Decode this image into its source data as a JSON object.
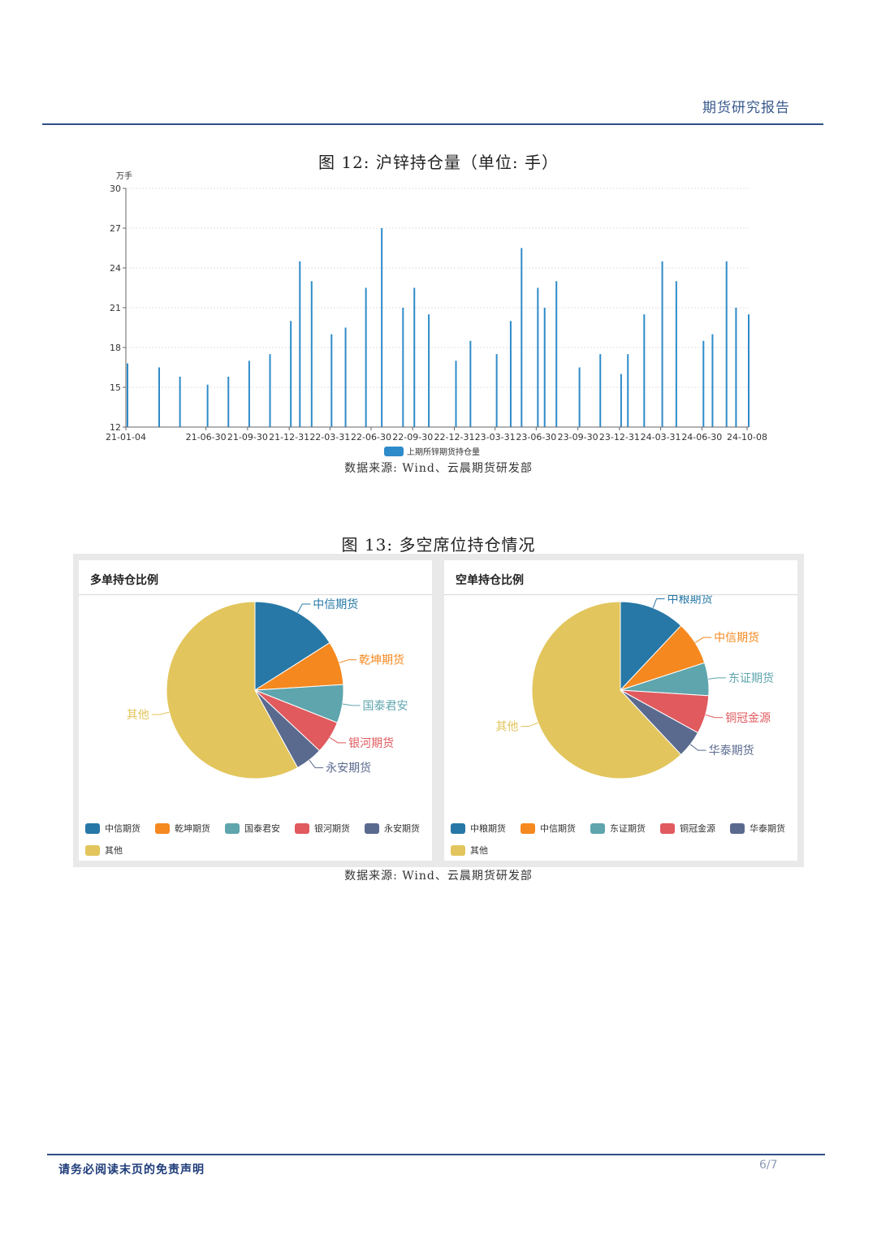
{
  "header": {
    "title": "期货研究报告"
  },
  "figure12": {
    "title": "图 12:  沪锌持仓量（单位:  手）",
    "source": "数据来源:  Wind、云晨期货研发部"
  },
  "chart_data": [
    {
      "type": "bar",
      "unit_label": "万手",
      "ylim": [
        12,
        30
      ],
      "yticks": [
        12,
        15,
        18,
        21,
        24,
        27,
        30
      ],
      "xticks": [
        "21-01-04",
        "21-06-30",
        "21-09-30",
        "21-12-31",
        "22-03-31",
        "22-06-30",
        "22-09-30",
        "22-12-31",
        "23-03-31",
        "23-06-30",
        "23-09-30",
        "23-12-31",
        "24-03-31",
        "24-06-30",
        "24-10-08"
      ],
      "legend": "上期所锌期货持仓量",
      "color": "#2e8bc9",
      "grid": true,
      "series": [
        {
          "name": "上期所锌期货持仓量",
          "x": [
            "21-01-04",
            "21-03-15",
            "21-04-30",
            "21-06-30",
            "21-08-15",
            "21-09-30",
            "21-11-15",
            "21-12-31",
            "22-01-20",
            "22-02-15",
            "22-03-31",
            "22-05-01",
            "22-06-15",
            "22-07-20",
            "22-09-05",
            "22-09-30",
            "22-11-01",
            "22-12-31",
            "23-02-01",
            "23-03-31",
            "23-05-01",
            "23-05-25",
            "23-06-30",
            "23-07-15",
            "23-08-10",
            "23-09-30",
            "23-11-15",
            "23-12-31",
            "24-01-15",
            "24-02-20",
            "24-03-31",
            "24-05-01",
            "24-06-30",
            "24-07-20",
            "24-08-20",
            "24-09-10",
            "24-10-08"
          ],
          "values": [
            16.8,
            16.5,
            15.8,
            15.2,
            15.8,
            17.0,
            17.5,
            20.0,
            24.5,
            23.0,
            19.0,
            19.5,
            22.5,
            27.0,
            21.0,
            22.5,
            20.5,
            17.0,
            18.5,
            17.5,
            20.0,
            25.5,
            22.5,
            21.0,
            23.0,
            16.5,
            17.5,
            16.0,
            17.5,
            20.5,
            24.5,
            23.0,
            18.5,
            19.0,
            24.5,
            21.0,
            20.5
          ]
        }
      ]
    },
    {
      "type": "pie",
      "title": "多单持仓比例",
      "slices": [
        {
          "name": "中信期货",
          "value": 16,
          "color": "#2778a6"
        },
        {
          "name": "乾坤期货",
          "value": 8,
          "color": "#f5881f"
        },
        {
          "name": "国泰君安",
          "value": 7,
          "color": "#5ea5ad"
        },
        {
          "name": "银河期货",
          "value": 6,
          "color": "#e05a5e"
        },
        {
          "name": "永安期货",
          "value": 5,
          "color": "#5a6a8f"
        },
        {
          "name": "其他",
          "value": 58,
          "color": "#e2c55c"
        }
      ]
    },
    {
      "type": "pie",
      "title": "空单持仓比例",
      "slices": [
        {
          "name": "中粮期货",
          "value": 12,
          "color": "#2778a6"
        },
        {
          "name": "中信期货",
          "value": 8,
          "color": "#f5881f"
        },
        {
          "name": "东证期货",
          "value": 6,
          "color": "#5ea5ad"
        },
        {
          "name": "铜冠金源",
          "value": 7,
          "color": "#e05a5e"
        },
        {
          "name": "华泰期货",
          "value": 5,
          "color": "#5a6a8f"
        },
        {
          "name": "其他",
          "value": 62,
          "color": "#e2c55c"
        }
      ]
    }
  ],
  "figure13": {
    "title": "图 13:  多空席位持仓情况",
    "source": "数据来源:  Wind、云晨期货研发部"
  },
  "footer": {
    "disclaimer": "请务必阅读末页的免责声明",
    "page": "6/7"
  }
}
